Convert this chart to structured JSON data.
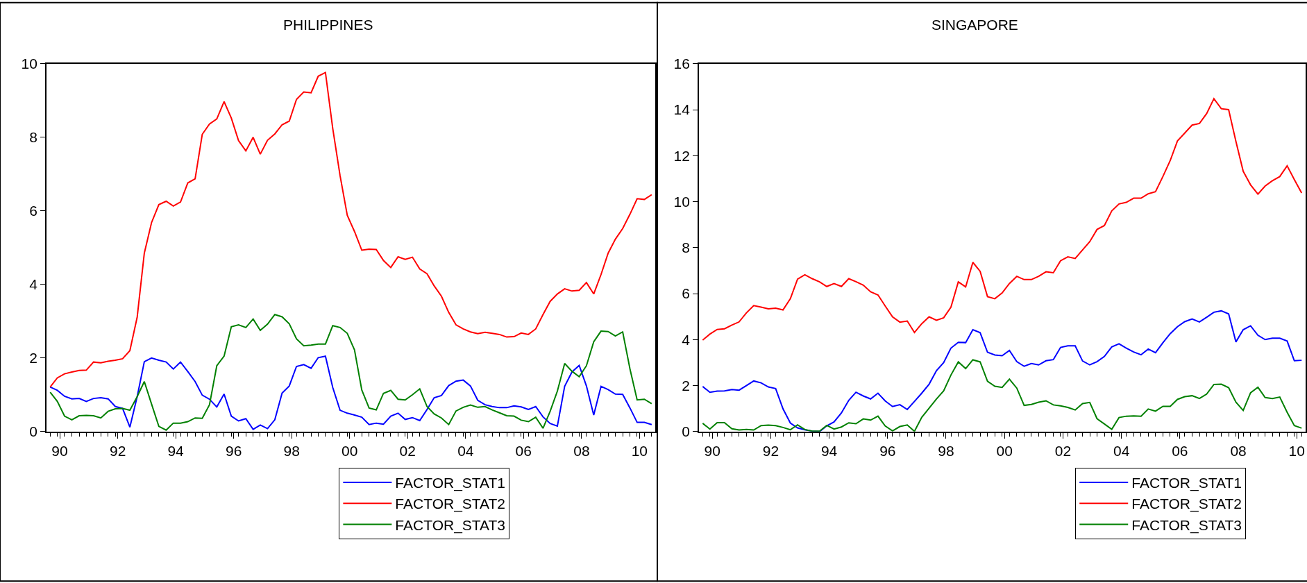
{
  "chart_data": [
    {
      "type": "line",
      "title": "PHILIPPINES",
      "legend": "bottom",
      "xlim": [
        "1989-11-15",
        "2010-11-15"
      ],
      "xticks": [
        {
          "value": "1990-05",
          "label": "90"
        },
        {
          "value": "1992-05",
          "label": "92"
        },
        {
          "value": "1994-05",
          "label": "94"
        },
        {
          "value": "1996-05",
          "label": "96"
        },
        {
          "value": "1998-05",
          "label": "98"
        },
        {
          "value": "2000-05",
          "label": "00"
        },
        {
          "value": "2002-05",
          "label": "02"
        },
        {
          "value": "2004-05",
          "label": "04"
        },
        {
          "value": "2006-05",
          "label": "06"
        },
        {
          "value": "2008-05",
          "label": "08"
        },
        {
          "value": "2010-05",
          "label": "10"
        }
      ],
      "ylim": [
        0,
        10
      ],
      "yticks": [
        0,
        2,
        4,
        6,
        8,
        10
      ],
      "x": [
        "1990-01",
        "1990-04",
        "1990-07",
        "1990-10",
        "1991-01",
        "1991-04",
        "1991-07",
        "1991-10",
        "1992-01",
        "1992-04",
        "1992-07",
        "1992-10",
        "1993-01",
        "1993-04",
        "1993-07",
        "1993-10",
        "1994-01",
        "1994-04",
        "1994-07",
        "1994-10",
        "1995-01",
        "1995-04",
        "1995-07",
        "1995-10",
        "1996-01",
        "1996-04",
        "1996-07",
        "1996-10",
        "1997-01",
        "1997-04",
        "1997-07",
        "1997-10",
        "1998-01",
        "1998-04",
        "1998-07",
        "1998-10",
        "1999-01",
        "1999-04",
        "1999-07",
        "1999-10",
        "2000-01",
        "2000-04",
        "2000-07",
        "2000-10",
        "2001-01",
        "2001-04",
        "2001-07",
        "2001-10",
        "2002-01",
        "2002-04",
        "2002-07",
        "2002-10",
        "2003-01",
        "2003-04",
        "2003-07",
        "2003-10",
        "2004-01",
        "2004-04",
        "2004-07",
        "2004-10",
        "2005-01",
        "2005-04",
        "2005-07",
        "2005-10",
        "2006-01",
        "2006-04",
        "2006-07",
        "2006-10",
        "2007-01",
        "2007-04",
        "2007-07",
        "2007-10",
        "2008-01",
        "2008-04",
        "2008-07",
        "2008-10",
        "2009-01",
        "2009-04",
        "2009-07",
        "2009-10",
        "2010-01",
        "2010-04",
        "2010-07",
        "2010-10"
      ],
      "series": [
        {
          "name": "FACTOR_STAT1",
          "color": "#0000ff",
          "values": [
            1.21,
            1.12,
            0.96,
            0.89,
            0.9,
            0.82,
            0.9,
            0.92,
            0.89,
            0.68,
            0.63,
            0.12,
            0.95,
            1.9,
            2.0,
            1.94,
            1.89,
            1.7,
            1.89,
            1.63,
            1.36,
            0.99,
            0.88,
            0.67,
            1.02,
            0.42,
            0.29,
            0.35,
            0.06,
            0.18,
            0.08,
            0.32,
            1.05,
            1.24,
            1.77,
            1.82,
            1.72,
            2.01,
            2.05,
            1.2,
            0.58,
            0.5,
            0.45,
            0.39,
            0.19,
            0.23,
            0.2,
            0.42,
            0.5,
            0.33,
            0.38,
            0.3,
            0.6,
            0.92,
            0.98,
            1.25,
            1.37,
            1.4,
            1.24,
            0.85,
            0.73,
            0.68,
            0.65,
            0.65,
            0.7,
            0.67,
            0.6,
            0.68,
            0.4,
            0.22,
            0.15,
            1.23,
            1.62,
            1.8,
            1.24,
            0.45,
            1.23,
            1.14,
            1.02,
            1.01,
            0.64,
            0.25,
            0.25,
            0.19
          ]
        },
        {
          "name": "FACTOR_STAT2",
          "color": "#ff0000",
          "values": [
            1.21,
            1.46,
            1.57,
            1.62,
            1.66,
            1.67,
            1.89,
            1.87,
            1.91,
            1.94,
            1.98,
            2.2,
            3.11,
            4.85,
            5.68,
            6.17,
            6.26,
            6.13,
            6.24,
            6.76,
            6.87,
            8.08,
            8.36,
            8.5,
            8.97,
            8.52,
            7.91,
            7.63,
            8.0,
            7.54,
            7.92,
            8.09,
            8.34,
            8.44,
            9.03,
            9.23,
            9.21,
            9.66,
            9.76,
            8.24,
            6.96,
            5.88,
            5.44,
            4.93,
            4.96,
            4.95,
            4.65,
            4.46,
            4.75,
            4.68,
            4.74,
            4.42,
            4.29,
            3.96,
            3.68,
            3.24,
            2.9,
            2.79,
            2.71,
            2.66,
            2.7,
            2.67,
            2.64,
            2.57,
            2.58,
            2.68,
            2.64,
            2.79,
            3.18,
            3.54,
            3.74,
            3.88,
            3.82,
            3.84,
            4.05,
            3.74,
            4.27,
            4.85,
            5.23,
            5.52,
            5.91,
            6.33,
            6.31,
            6.44
          ]
        },
        {
          "name": "FACTOR_STAT3",
          "color": "#008000",
          "values": [
            1.07,
            0.82,
            0.42,
            0.32,
            0.43,
            0.44,
            0.43,
            0.37,
            0.55,
            0.62,
            0.63,
            0.58,
            0.95,
            1.36,
            0.75,
            0.14,
            0.04,
            0.23,
            0.23,
            0.27,
            0.37,
            0.36,
            0.73,
            1.79,
            2.05,
            2.85,
            2.9,
            2.83,
            3.06,
            2.75,
            2.92,
            3.18,
            3.12,
            2.93,
            2.52,
            2.33,
            2.35,
            2.38,
            2.38,
            2.88,
            2.83,
            2.67,
            2.22,
            1.13,
            0.64,
            0.59,
            1.04,
            1.12,
            0.88,
            0.86,
            1.0,
            1.16,
            0.68,
            0.48,
            0.37,
            0.19,
            0.56,
            0.66,
            0.72,
            0.66,
            0.68,
            0.59,
            0.51,
            0.43,
            0.42,
            0.31,
            0.27,
            0.39,
            0.09,
            0.55,
            1.1,
            1.85,
            1.64,
            1.49,
            1.79,
            2.44,
            2.73,
            2.72,
            2.6,
            2.71,
            1.7,
            0.86,
            0.88,
            0.76
          ]
        }
      ]
    },
    {
      "type": "line",
      "title": "SINGAPORE",
      "legend": "bottom",
      "xlim": [
        "1989-11-15",
        "2010-08-20"
      ],
      "xticks": [
        {
          "value": "1990-05",
          "label": "90"
        },
        {
          "value": "1992-05",
          "label": "92"
        },
        {
          "value": "1994-05",
          "label": "94"
        },
        {
          "value": "1996-05",
          "label": "96"
        },
        {
          "value": "1998-05",
          "label": "98"
        },
        {
          "value": "2000-05",
          "label": "00"
        },
        {
          "value": "2002-05",
          "label": "02"
        },
        {
          "value": "2004-05",
          "label": "04"
        },
        {
          "value": "2006-05",
          "label": "06"
        },
        {
          "value": "2008-05",
          "label": "08"
        },
        {
          "value": "2010-05",
          "label": "10"
        }
      ],
      "ylim": [
        0,
        16
      ],
      "yticks": [
        0,
        2,
        4,
        6,
        8,
        10,
        12,
        14,
        16
      ],
      "x": [
        "1990-01",
        "1990-04",
        "1990-07",
        "1990-10",
        "1991-01",
        "1991-04",
        "1991-07",
        "1991-10",
        "1992-01",
        "1992-04",
        "1992-07",
        "1992-10",
        "1993-01",
        "1993-04",
        "1993-07",
        "1993-10",
        "1994-01",
        "1994-04",
        "1994-07",
        "1994-10",
        "1995-01",
        "1995-04",
        "1995-07",
        "1995-10",
        "1996-01",
        "1996-04",
        "1996-07",
        "1996-10",
        "1997-01",
        "1997-04",
        "1997-07",
        "1997-10",
        "1998-01",
        "1998-04",
        "1998-07",
        "1998-10",
        "1999-01",
        "1999-04",
        "1999-07",
        "1999-10",
        "2000-01",
        "2000-04",
        "2000-07",
        "2000-10",
        "2001-01",
        "2001-04",
        "2001-07",
        "2001-10",
        "2002-01",
        "2002-04",
        "2002-07",
        "2002-10",
        "2003-01",
        "2003-04",
        "2003-07",
        "2003-10",
        "2004-01",
        "2004-04",
        "2004-07",
        "2004-10",
        "2005-01",
        "2005-04",
        "2005-07",
        "2005-10",
        "2006-01",
        "2006-04",
        "2006-07",
        "2006-10",
        "2007-01",
        "2007-04",
        "2007-07",
        "2007-10",
        "2008-01",
        "2008-04",
        "2008-07",
        "2008-10",
        "2009-01",
        "2009-04",
        "2009-07",
        "2009-10",
        "2010-01",
        "2010-04",
        "2010-07"
      ],
      "series": [
        {
          "name": "FACTOR_STAT1",
          "color": "#0000ff",
          "values": [
            1.96,
            1.71,
            1.76,
            1.77,
            1.83,
            1.8,
            2.0,
            2.2,
            2.12,
            1.94,
            1.87,
            0.99,
            0.37,
            0.16,
            0.08,
            0.02,
            0.0,
            0.25,
            0.42,
            0.81,
            1.36,
            1.71,
            1.55,
            1.42,
            1.67,
            1.33,
            1.09,
            1.17,
            0.96,
            1.31,
            1.67,
            2.06,
            2.65,
            3.0,
            3.63,
            3.88,
            3.87,
            4.43,
            4.3,
            3.45,
            3.33,
            3.3,
            3.53,
            3.04,
            2.84,
            2.96,
            2.9,
            3.08,
            3.13,
            3.66,
            3.73,
            3.73,
            3.07,
            2.9,
            3.04,
            3.27,
            3.68,
            3.82,
            3.63,
            3.46,
            3.34,
            3.59,
            3.43,
            3.86,
            4.26,
            4.56,
            4.78,
            4.9,
            4.77,
            4.97,
            5.19,
            5.25,
            5.12,
            3.9,
            4.43,
            4.6,
            4.19,
            4.0,
            4.06,
            4.06,
            3.94,
            3.08,
            3.1
          ]
        },
        {
          "name": "FACTOR_STAT2",
          "color": "#ff0000",
          "values": [
            3.98,
            4.24,
            4.44,
            4.47,
            4.63,
            4.77,
            5.16,
            5.48,
            5.41,
            5.34,
            5.37,
            5.29,
            5.78,
            6.63,
            6.82,
            6.65,
            6.51,
            6.31,
            6.44,
            6.31,
            6.65,
            6.52,
            6.37,
            6.08,
            5.94,
            5.46,
            4.99,
            4.76,
            4.81,
            4.31,
            4.69,
            4.99,
            4.84,
            4.95,
            5.41,
            6.51,
            6.29,
            7.36,
            6.97,
            5.87,
            5.78,
            6.03,
            6.44,
            6.75,
            6.61,
            6.61,
            6.75,
            6.95,
            6.91,
            7.43,
            7.6,
            7.53,
            7.9,
            8.26,
            8.79,
            8.96,
            9.6,
            9.9,
            9.97,
            10.15,
            10.15,
            10.34,
            10.43,
            11.09,
            11.79,
            12.64,
            12.98,
            13.33,
            13.4,
            13.83,
            14.48,
            14.04,
            14.0,
            12.62,
            11.32,
            10.73,
            10.33,
            10.68,
            10.91,
            11.09,
            11.56,
            10.96,
            10.38
          ]
        },
        {
          "name": "FACTOR_STAT3",
          "color": "#008000",
          "values": [
            0.36,
            0.11,
            0.39,
            0.39,
            0.12,
            0.07,
            0.09,
            0.07,
            0.26,
            0.28,
            0.26,
            0.18,
            0.08,
            0.29,
            0.09,
            0.02,
            0.02,
            0.27,
            0.11,
            0.2,
            0.38,
            0.34,
            0.55,
            0.5,
            0.67,
            0.24,
            0.03,
            0.22,
            0.29,
            0.01,
            0.62,
            1.02,
            1.42,
            1.77,
            2.46,
            3.03,
            2.74,
            3.12,
            3.03,
            2.19,
            1.97,
            1.92,
            2.28,
            1.89,
            1.14,
            1.18,
            1.28,
            1.34,
            1.16,
            1.12,
            1.05,
            0.94,
            1.22,
            1.27,
            0.56,
            0.33,
            0.1,
            0.61,
            0.67,
            0.68,
            0.67,
            0.98,
            0.89,
            1.1,
            1.1,
            1.4,
            1.52,
            1.56,
            1.44,
            1.63,
            2.05,
            2.06,
            1.91,
            1.28,
            0.92,
            1.69,
            1.93,
            1.48,
            1.44,
            1.5,
            0.84,
            0.26,
            0.15
          ]
        }
      ]
    }
  ]
}
